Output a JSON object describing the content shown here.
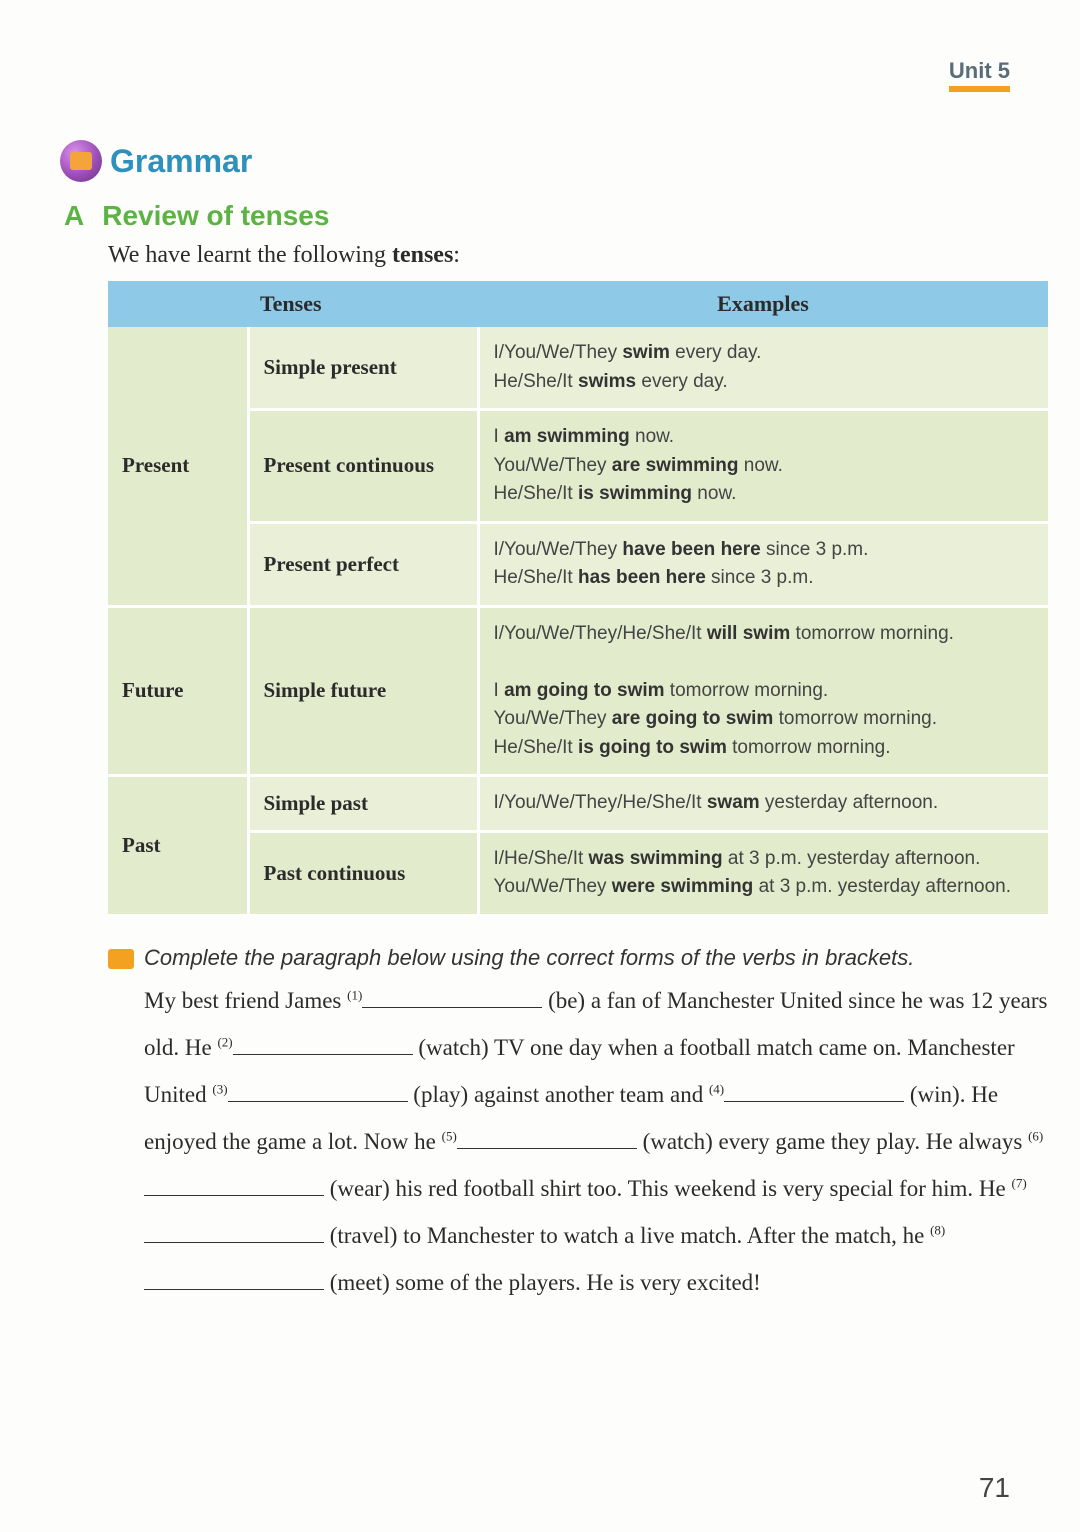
{
  "unit_label": "Unit 5",
  "section_title": "Grammar",
  "sub_letter": "A",
  "sub_title": "Review of tenses",
  "intro_html": "We have learnt the following <b>tenses</b>:",
  "table": {
    "header_tenses": "Tenses",
    "header_examples": "Examples",
    "groups": [
      {
        "category": "Present",
        "rows": [
          {
            "tense": "Simple present",
            "example_html": "I/You/We/They <b>swim</b> every day.<br>He/She/It <b>swims</b> every day.",
            "bg": "bg-a"
          },
          {
            "tense": "Present continuous",
            "example_html": "I <b>am swimming</b> now.<br>You/We/They <b>are swimming</b> now.<br>He/She/It <b>is swimming</b> now.",
            "bg": "bg-b"
          },
          {
            "tense": "Present perfect",
            "example_html": "I/You/We/They <b>have been here</b> since 3 p.m.<br>He/She/It <b>has been here</b> since 3 p.m.",
            "bg": "bg-a"
          }
        ]
      },
      {
        "category": "Future",
        "rows": [
          {
            "tense": "Simple future",
            "example_html": "I/You/We/They/He/She/It <b>will swim</b> tomorrow morning.<br><br>I <b>am going to swim</b> tomorrow morning.<br>You/We/They <b>are going to swim</b> tomorrow morning.<br>He/She/It <b>is going to swim</b> tomorrow morning.",
            "bg": "bg-b"
          }
        ]
      },
      {
        "category": "Past",
        "rows": [
          {
            "tense": "Simple past",
            "example_html": "I/You/We/They/He/She/It <b>swam</b> yesterday afternoon.",
            "bg": "bg-a"
          },
          {
            "tense": "Past continuous",
            "example_html": "I/He/She/It <b>was swimming</b> at 3 p.m. yesterday afternoon.<br>You/We/They <b>were swimming</b> at 3 p.m. yesterday afternoon.",
            "bg": "bg-b"
          }
        ]
      }
    ]
  },
  "exercise": {
    "instruction": "Complete the paragraph below using the correct forms of the verbs in brackets.",
    "paragraph_html": "My best friend James <span class='sup'>(1)</span><span class='blank'></span> (be) a fan of Manchester United since he was 12 years old. He <span class='sup'>(2)</span><span class='blank'></span> (watch) TV one day when a football match came on. Manchester United <span class='sup'>(3)</span><span class='blank'></span> (play) against another team and <span class='sup'>(4)</span><span class='blank'></span> (win). He enjoyed the game a lot. Now he <span class='sup'>(5)</span><span class='blank'></span> (watch) every game they play. He always <span class='sup'>(6)</span><span class='blank'></span> (wear) his red football shirt too. This weekend is very special for him. He <span class='sup'>(7)</span><span class='blank'></span> (travel) to Manchester to watch a live match. After the match, he <span class='sup'>(8)</span><span class='blank'></span> (meet) some of the players. He is very excited!"
  },
  "page_number": "71",
  "colors": {
    "header_bg": "#8ec9e8",
    "row_light": "#e9f0d7",
    "row_dark": "#e2ebcc",
    "accent_orange": "#f4a020",
    "title_blue": "#2d91bb",
    "section_green": "#5cb344"
  }
}
